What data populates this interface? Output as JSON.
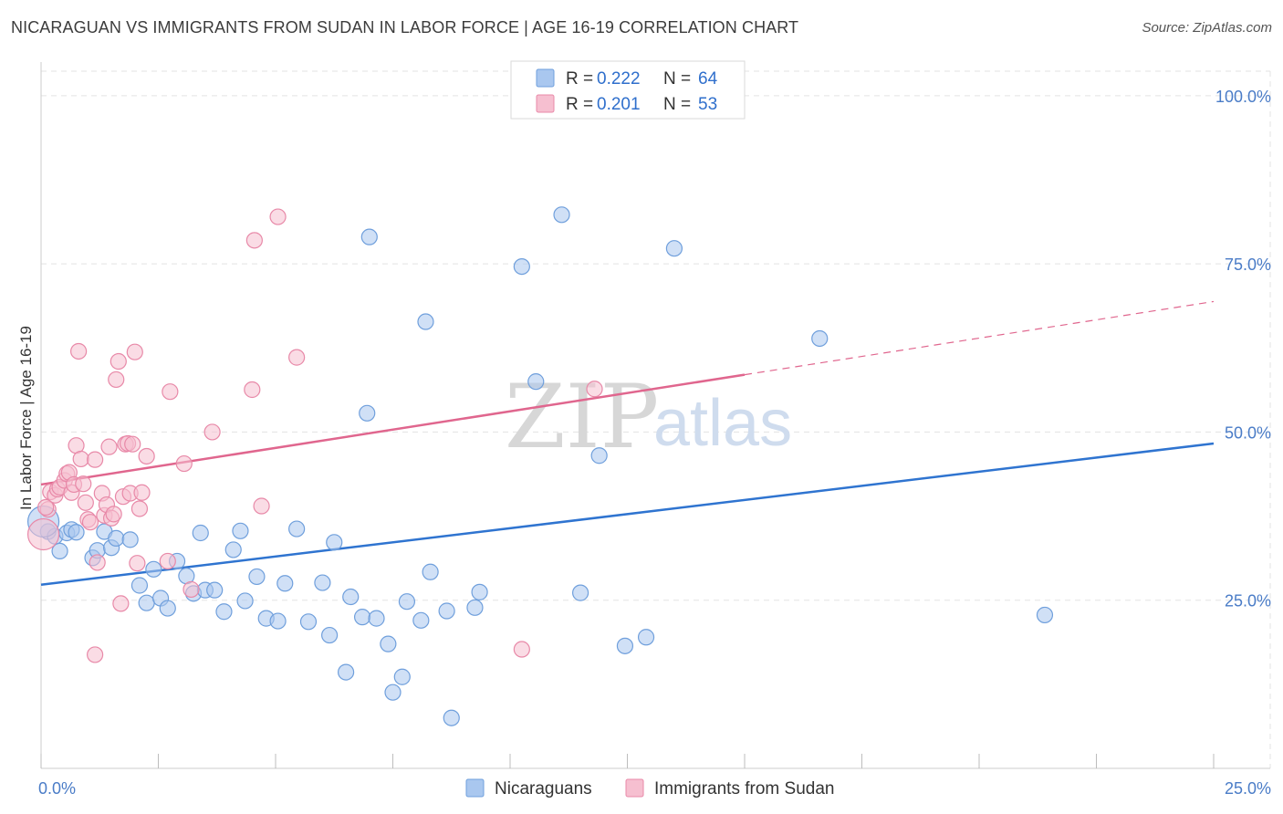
{
  "title": "NICARAGUAN VS IMMIGRANTS FROM SUDAN IN LABOR FORCE | AGE 16-19 CORRELATION CHART",
  "source": "Source: ZipAtlas.com",
  "watermark": {
    "zip": "ZIP",
    "atlas": "atlas"
  },
  "colors": {
    "blue_fill": "#a9c7ef",
    "blue_stroke": "#6f9fdc",
    "blue_line": "#2f74d0",
    "pink_fill": "#f6bfd0",
    "pink_stroke": "#e889a8",
    "pink_line": "#e0668e",
    "grid": "#e3e3e3",
    "tick_label": "#4a7cc7"
  },
  "legend": {
    "rows": [
      {
        "r_label": "R = ",
        "r_value": "0.222",
        "n_label": "N = ",
        "n_value": "64"
      },
      {
        "r_label": "R = ",
        "r_value": "0.201",
        "n_label": "N = ",
        "n_value": "53"
      }
    ]
  },
  "bottom_legend": [
    "Nicaraguans",
    "Immigrants from Sudan"
  ],
  "chart_data": {
    "type": "scatter",
    "title": "NICARAGUAN VS IMMIGRANTS FROM SUDAN IN LABOR FORCE | AGE 16-19 CORRELATION CHART",
    "xlabel": "",
    "ylabel": "In Labor Force | Age 16-19",
    "xlim": [
      0,
      25
    ],
    "ylim": [
      0,
      105
    ],
    "x_tick_labels": [
      "0.0%",
      "25.0%"
    ],
    "x_tick_label_values": [
      0,
      25
    ],
    "y_ticks": [
      25,
      50,
      75,
      100
    ],
    "y_tick_labels": [
      "25.0%",
      "50.0%",
      "75.0%",
      "100.0%"
    ],
    "grid": true,
    "legend_position": "top-center",
    "series": [
      {
        "name": "Nicaraguans",
        "r": 0.222,
        "n": 64,
        "trend": {
          "x0": 0,
          "y0": 27.3,
          "x1": 25,
          "y1": 48.3,
          "dashed_from": null
        },
        "points": [
          [
            0.15,
            35.2
          ],
          [
            0.3,
            34.5
          ],
          [
            0.4,
            32.3
          ],
          [
            0.55,
            35.0
          ],
          [
            0.65,
            35.5
          ],
          [
            0.75,
            35.1
          ],
          [
            1.1,
            31.3
          ],
          [
            1.2,
            32.4
          ],
          [
            1.35,
            35.2
          ],
          [
            1.5,
            32.8
          ],
          [
            1.6,
            34.2
          ],
          [
            1.9,
            34.0
          ],
          [
            2.1,
            27.2
          ],
          [
            2.25,
            24.6
          ],
          [
            2.4,
            29.6
          ],
          [
            2.55,
            25.3
          ],
          [
            2.7,
            23.8
          ],
          [
            2.9,
            30.8
          ],
          [
            3.1,
            28.6
          ],
          [
            3.25,
            26.0
          ],
          [
            3.4,
            35.0
          ],
          [
            3.5,
            26.5
          ],
          [
            3.7,
            26.5
          ],
          [
            3.9,
            23.3
          ],
          [
            4.1,
            32.5
          ],
          [
            4.25,
            35.3
          ],
          [
            4.35,
            24.9
          ],
          [
            4.6,
            28.5
          ],
          [
            4.8,
            22.3
          ],
          [
            5.05,
            21.9
          ],
          [
            5.2,
            27.5
          ],
          [
            5.45,
            35.6
          ],
          [
            5.7,
            21.8
          ],
          [
            6.0,
            27.6
          ],
          [
            6.15,
            19.8
          ],
          [
            6.25,
            33.6
          ],
          [
            6.5,
            14.3
          ],
          [
            6.6,
            25.5
          ],
          [
            6.85,
            22.5
          ],
          [
            7.0,
            79.0
          ],
          [
            7.15,
            22.3
          ],
          [
            6.95,
            52.8
          ],
          [
            7.4,
            18.5
          ],
          [
            7.5,
            11.3
          ],
          [
            7.7,
            13.6
          ],
          [
            7.8,
            24.8
          ],
          [
            8.1,
            22.0
          ],
          [
            8.2,
            66.4
          ],
          [
            8.3,
            29.2
          ],
          [
            8.65,
            23.4
          ],
          [
            9.25,
            23.9
          ],
          [
            9.35,
            26.2
          ],
          [
            10.25,
            74.6
          ],
          [
            10.55,
            57.5
          ],
          [
            11.1,
            82.3
          ],
          [
            11.5,
            26.1
          ],
          [
            11.9,
            46.5
          ],
          [
            12.45,
            18.2
          ],
          [
            12.9,
            19.5
          ],
          [
            13.5,
            77.3
          ],
          [
            16.6,
            63.9
          ],
          [
            21.4,
            22.8
          ],
          [
            8.75,
            7.5
          ],
          [
            0.05,
            36.7
          ]
        ]
      },
      {
        "name": "Immigrants from Sudan",
        "r": 0.201,
        "n": 53,
        "trend": {
          "x0": 0,
          "y0": 42.2,
          "x1": 25,
          "y1": 69.4,
          "dashed_from": 15
        },
        "points": [
          [
            0.05,
            34.8
          ],
          [
            0.15,
            38.5
          ],
          [
            0.2,
            41.1
          ],
          [
            0.3,
            40.6
          ],
          [
            0.35,
            41.5
          ],
          [
            0.4,
            41.8
          ],
          [
            0.5,
            42.8
          ],
          [
            0.55,
            43.8
          ],
          [
            0.6,
            44.0
          ],
          [
            0.65,
            41.0
          ],
          [
            0.7,
            42.2
          ],
          [
            0.75,
            48.0
          ],
          [
            0.8,
            62.0
          ],
          [
            0.85,
            46.0
          ],
          [
            0.9,
            42.3
          ],
          [
            0.95,
            39.5
          ],
          [
            1.0,
            37.0
          ],
          [
            1.05,
            36.6
          ],
          [
            1.15,
            45.9
          ],
          [
            1.2,
            30.6
          ],
          [
            1.3,
            40.9
          ],
          [
            1.35,
            37.6
          ],
          [
            1.4,
            39.2
          ],
          [
            1.45,
            47.8
          ],
          [
            1.5,
            37.2
          ],
          [
            1.55,
            37.8
          ],
          [
            1.6,
            57.8
          ],
          [
            1.65,
            60.5
          ],
          [
            1.7,
            24.5
          ],
          [
            1.75,
            40.4
          ],
          [
            1.8,
            48.2
          ],
          [
            1.85,
            48.3
          ],
          [
            1.9,
            40.9
          ],
          [
            1.95,
            48.2
          ],
          [
            2.0,
            61.9
          ],
          [
            2.05,
            30.5
          ],
          [
            2.1,
            38.6
          ],
          [
            2.15,
            41.0
          ],
          [
            2.25,
            46.4
          ],
          [
            2.75,
            56.0
          ],
          [
            2.7,
            30.8
          ],
          [
            3.05,
            45.3
          ],
          [
            3.2,
            26.6
          ],
          [
            3.65,
            50.0
          ],
          [
            4.55,
            78.5
          ],
          [
            4.5,
            56.3
          ],
          [
            4.7,
            39.0
          ],
          [
            5.05,
            82.0
          ],
          [
            5.45,
            61.1
          ],
          [
            1.15,
            16.9
          ],
          [
            10.25,
            17.7
          ],
          [
            11.8,
            56.4
          ],
          [
            0.1,
            38.8
          ]
        ]
      }
    ]
  }
}
